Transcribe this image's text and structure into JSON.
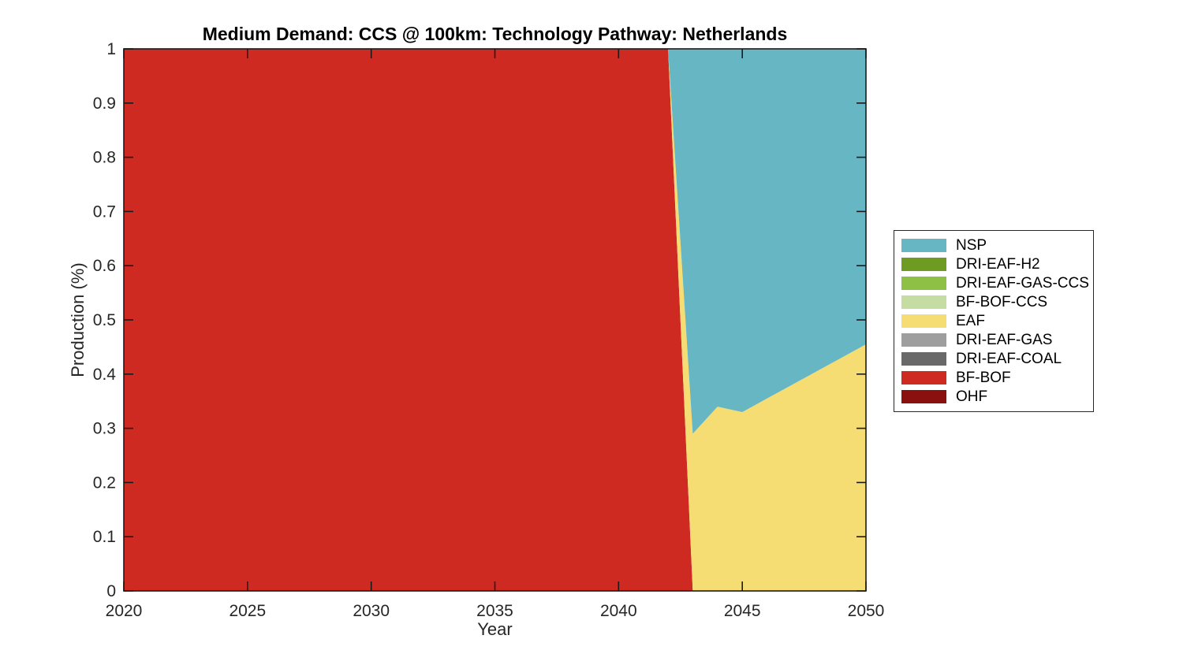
{
  "chart": {
    "title": "Medium Demand: CCS @ 100km: Technology Pathway: Netherlands",
    "xlabel": "Year",
    "ylabel": "Production (%)"
  },
  "chart_data": {
    "type": "area",
    "stacked": true,
    "title": "Medium Demand: CCS @ 100km: Technology Pathway: Netherlands",
    "xlabel": "Year",
    "ylabel": "Production (%)",
    "xlim": [
      2020,
      2050
    ],
    "ylim": [
      0,
      1
    ],
    "x_ticks": [
      2020,
      2025,
      2030,
      2035,
      2040,
      2045,
      2050
    ],
    "y_ticks": [
      0,
      0.1,
      0.2,
      0.3,
      0.4,
      0.5,
      0.6,
      0.7,
      0.8,
      0.9,
      1
    ],
    "grid": false,
    "legend_position": "right-outside",
    "x": [
      2020,
      2042,
      2043,
      2044,
      2045,
      2046,
      2047,
      2048,
      2049,
      2050
    ],
    "series": [
      {
        "name": "OHF",
        "color": "#8A0F0F",
        "values": [
          0,
          0,
          0,
          0,
          0,
          0,
          0,
          0,
          0,
          0
        ]
      },
      {
        "name": "BF-BOF",
        "color": "#CE2A21",
        "values": [
          1,
          1,
          0,
          0,
          0,
          0,
          0,
          0,
          0,
          0
        ]
      },
      {
        "name": "DRI-EAF-COAL",
        "color": "#696969",
        "values": [
          0,
          0,
          0,
          0,
          0,
          0,
          0,
          0,
          0,
          0
        ]
      },
      {
        "name": "DRI-EAF-GAS",
        "color": "#9E9E9E",
        "values": [
          0,
          0,
          0,
          0,
          0,
          0,
          0,
          0,
          0,
          0
        ]
      },
      {
        "name": "EAF",
        "color": "#F5DD74",
        "values": [
          0,
          0,
          0.29,
          0.34,
          0.33,
          0.355,
          0.38,
          0.405,
          0.43,
          0.455
        ]
      },
      {
        "name": "BF-BOF-CCS",
        "color": "#C5DCA2",
        "values": [
          0,
          0,
          0,
          0,
          0,
          0,
          0,
          0,
          0,
          0
        ]
      },
      {
        "name": "DRI-EAF-GAS-CCS",
        "color": "#8DC044",
        "values": [
          0,
          0,
          0,
          0,
          0,
          0,
          0,
          0,
          0,
          0
        ]
      },
      {
        "name": "DRI-EAF-H2",
        "color": "#6E9B22",
        "values": [
          0,
          0,
          0,
          0,
          0,
          0,
          0,
          0,
          0,
          0
        ]
      },
      {
        "name": "NSP",
        "color": "#66B6C4",
        "values": [
          0,
          0,
          0.71,
          0.66,
          0.67,
          0.645,
          0.62,
          0.595,
          0.57,
          0.545
        ]
      }
    ]
  },
  "legend": {
    "items": [
      {
        "label": "NSP",
        "color": "#66B6C4"
      },
      {
        "label": "DRI-EAF-H2",
        "color": "#6E9B22"
      },
      {
        "label": "DRI-EAF-GAS-CCS",
        "color": "#8DC044"
      },
      {
        "label": "BF-BOF-CCS",
        "color": "#C5DCA2"
      },
      {
        "label": "EAF",
        "color": "#F5DD74"
      },
      {
        "label": "DRI-EAF-GAS",
        "color": "#9E9E9E"
      },
      {
        "label": "DRI-EAF-COAL",
        "color": "#696969"
      },
      {
        "label": "BF-BOF",
        "color": "#CE2A21"
      },
      {
        "label": "OHF",
        "color": "#8A0F0F"
      }
    ]
  },
  "colors": {
    "axis": "#1a1a1a",
    "tick_label": "#262626",
    "background": "#ffffff"
  }
}
